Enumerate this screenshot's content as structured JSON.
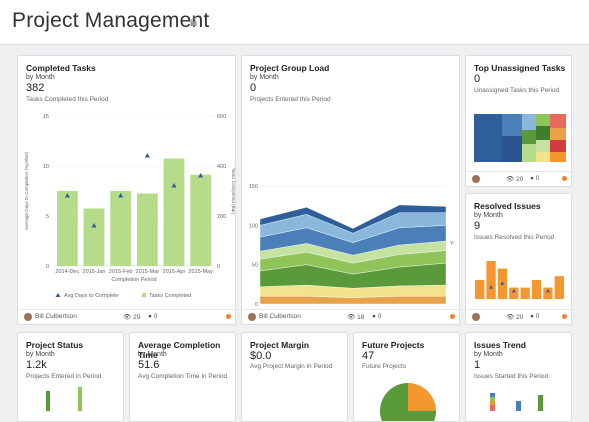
{
  "page": {
    "title": "Project Management"
  },
  "cards": {
    "completed_tasks": {
      "title": "Completed Tasks",
      "subtitle": "by Month",
      "value": "382",
      "desc": "Tasks Completed this Period",
      "owner": "Bill Culbertson",
      "views": "29",
      "comments": "0"
    },
    "project_group_load": {
      "title": "Project Group Load",
      "subtitle": "by Month",
      "value": "0",
      "desc": "Projects Entered this Period",
      "owner": "Bill Culbertson",
      "views": "18",
      "comments": "0"
    },
    "top_unassigned": {
      "title": "Top Unassigned Tasks",
      "value": "0",
      "desc": "Unassigned Tasks this Period",
      "views": "20",
      "comments": "0"
    },
    "resolved_issues": {
      "title": "Resolved Issues",
      "subtitle": "by Month",
      "value": "9",
      "desc": "Issues Resolved this Period",
      "views": "20",
      "comments": "0"
    },
    "project_status": {
      "title": "Project Status",
      "subtitle": "by Month",
      "value": "1.2k",
      "desc": "Projects Entered in Period"
    },
    "avg_completion": {
      "title": "Average Completion Time",
      "subtitle": "by Month",
      "value": "51.6",
      "desc": "Avg Completion Time in Period"
    },
    "project_margin": {
      "title": "Project Margin",
      "value": "$0.0",
      "desc": "Avg Project Margin in Period"
    },
    "future_projects": {
      "title": "Future Projects",
      "value": "47",
      "desc": "Future Projects"
    },
    "issues_trend": {
      "title": "Issues Trend",
      "subtitle": "by Month",
      "value": "1",
      "desc": "Issues Started this Period"
    }
  },
  "chart_data": [
    {
      "type": "bar",
      "chart": "completed_tasks",
      "categories": [
        "2014-Dec",
        "2015-Jan",
        "2015-Feb",
        "2015-Mar",
        "2015-Apr",
        "2015-May"
      ],
      "series": [
        {
          "name": "Tasks Completed",
          "values": [
            300,
            230,
            300,
            290,
            430,
            365
          ],
          "color": "#b5dc8a"
        },
        {
          "name": "Avg Days to Complete",
          "values": [
            7,
            4,
            7,
            11,
            8,
            9
          ],
          "color": "#2e5e9c"
        }
      ],
      "xlabel": "Completion Period",
      "ylabel_left": "Average Days to Completion (Symbol)",
      "ylabel_right": "Tasks Completed (Bar)",
      "ylim_left": [
        0,
        15
      ],
      "ylim_right": [
        0,
        600
      ],
      "yticks_left": [
        "0",
        "5",
        "10",
        "15"
      ],
      "yticks_right": [
        "0",
        "200",
        "400",
        "600"
      ],
      "legend": [
        "Avg Days to Complete",
        "Tasks Completed"
      ],
      "legend_position": "bottom"
    },
    {
      "type": "area",
      "chart": "project_group_load",
      "yticks": [
        "0",
        "50",
        "100",
        "150"
      ],
      "ylim": [
        0,
        150
      ],
      "y_label_right": "Y",
      "series": [
        {
          "values": [
            10,
            10,
            8,
            10,
            10
          ],
          "color": "#e8a24a"
        },
        {
          "values": [
            12,
            14,
            12,
            13,
            14
          ],
          "color": "#f2e28c"
        },
        {
          "values": [
            20,
            26,
            18,
            24,
            28
          ],
          "color": "#5a9a3a"
        },
        {
          "values": [
            15,
            16,
            14,
            16,
            16
          ],
          "color": "#8fc45a"
        },
        {
          "values": [
            10,
            11,
            10,
            12,
            12
          ],
          "color": "#c5e2a0"
        },
        {
          "values": [
            18,
            20,
            16,
            22,
            20
          ],
          "color": "#4a7fb8"
        },
        {
          "values": [
            15,
            17,
            12,
            19,
            16
          ],
          "color": "#8ab8dc"
        },
        {
          "values": [
            8,
            9,
            6,
            10,
            8
          ],
          "color": "#2f5f9a"
        }
      ]
    },
    {
      "type": "bar",
      "chart": "resolved_issues",
      "values": [
        5,
        10,
        8,
        3,
        3,
        5,
        3,
        6
      ],
      "markers": [
        3,
        4,
        2,
        2
      ],
      "color": "#f5962e"
    }
  ]
}
